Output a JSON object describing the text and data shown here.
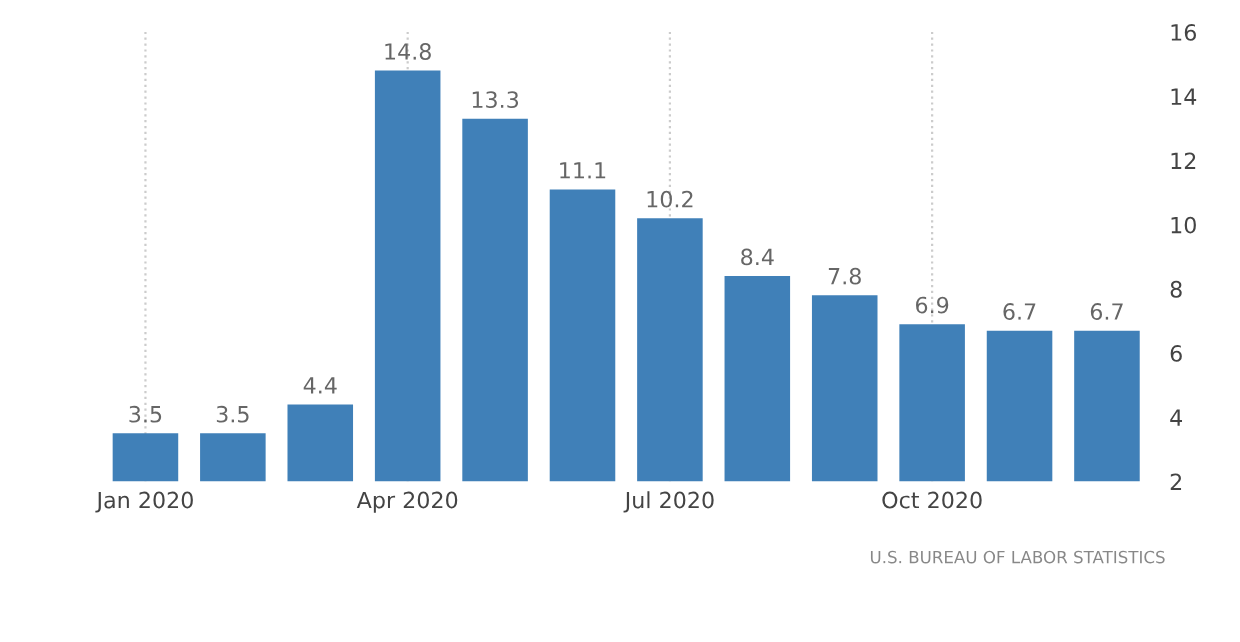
{
  "chart_data": {
    "type": "bar",
    "categories": [
      "Jan 2020",
      null,
      null,
      "Apr 2020",
      null,
      null,
      "Jul 2020",
      null,
      null,
      "Oct 2020",
      null,
      null
    ],
    "values": [
      3.5,
      3.5,
      4.4,
      14.8,
      13.3,
      11.1,
      10.2,
      8.4,
      7.8,
      6.9,
      6.7,
      6.7
    ],
    "color": "#4080b8",
    "ylim": [
      2,
      16
    ],
    "yticks": [
      2,
      4,
      6,
      8,
      10,
      12,
      14,
      16
    ],
    "grid": "x",
    "data_labels": true,
    "annotations": [
      "U.S. BUREAU OF LABOR STATISTICS"
    ]
  }
}
